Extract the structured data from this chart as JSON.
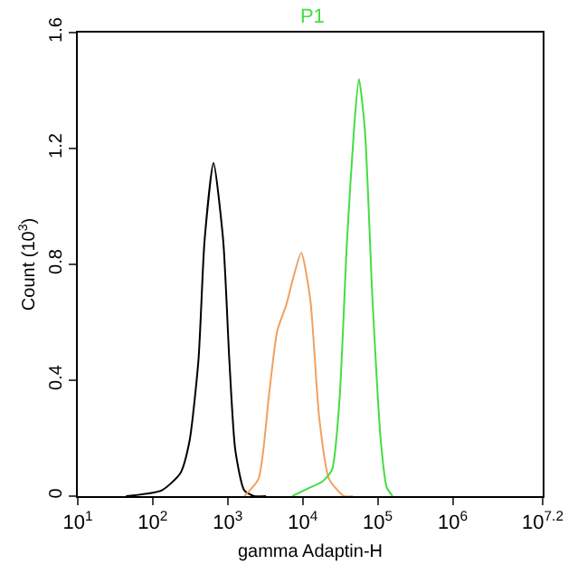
{
  "chart_data": {
    "type": "line",
    "title": "P1",
    "xlabel": "gamma Adaptin-H",
    "ylabel": "Count (10$^{3}$)",
    "log": "x",
    "grid": false,
    "marker": "none",
    "line_style": "solid",
    "xlim": [
      10,
      15850000
    ],
    "xticks": [
      {
        "value": 10,
        "label": "10$^{1}$"
      },
      {
        "value": 100,
        "label": "10$^{2}$"
      },
      {
        "value": 1000,
        "label": "10$^{3}$"
      },
      {
        "value": 10000,
        "label": "10$^{4}$"
      },
      {
        "value": 100000,
        "label": "10$^{5}$"
      },
      {
        "value": 1000000,
        "label": "10$^{6}$"
      },
      {
        "value": 15850000,
        "label": "10$^{7.2}$"
      }
    ],
    "ylim": [
      0,
      1.6
    ],
    "yticks": [
      0,
      0.4,
      0.8,
      1.2,
      1.6
    ],
    "series": [
      {
        "color": "#000000",
        "x": [
          44,
          132,
          234,
          309,
          407,
          490,
          646,
          871,
          1050,
          1260,
          1660,
          2240,
          3240
        ],
        "values": [
          0,
          0.02,
          0.08,
          0.19,
          0.47,
          0.88,
          1.15,
          0.88,
          0.47,
          0.16,
          0.02,
          0,
          0
        ]
      },
      {
        "color": "#f0a060",
        "x": [
          1660,
          2570,
          3550,
          4570,
          6030,
          7240,
          9550,
          12600,
          16600,
          22400,
          35500,
          46800
        ],
        "values": [
          0,
          0.06,
          0.35,
          0.57,
          0.66,
          0.74,
          0.84,
          0.68,
          0.27,
          0.06,
          0,
          0
        ]
      },
      {
        "color": "#44dd44",
        "x": [
          7240,
          12600,
          18200,
          24500,
          30900,
          38900,
          49000,
          56200,
          67600,
          85100,
          110000,
          132000,
          158000
        ],
        "values": [
          0,
          0.03,
          0.05,
          0.09,
          0.33,
          0.88,
          1.29,
          1.44,
          1.26,
          0.68,
          0.19,
          0.03,
          0
        ]
      }
    ]
  }
}
